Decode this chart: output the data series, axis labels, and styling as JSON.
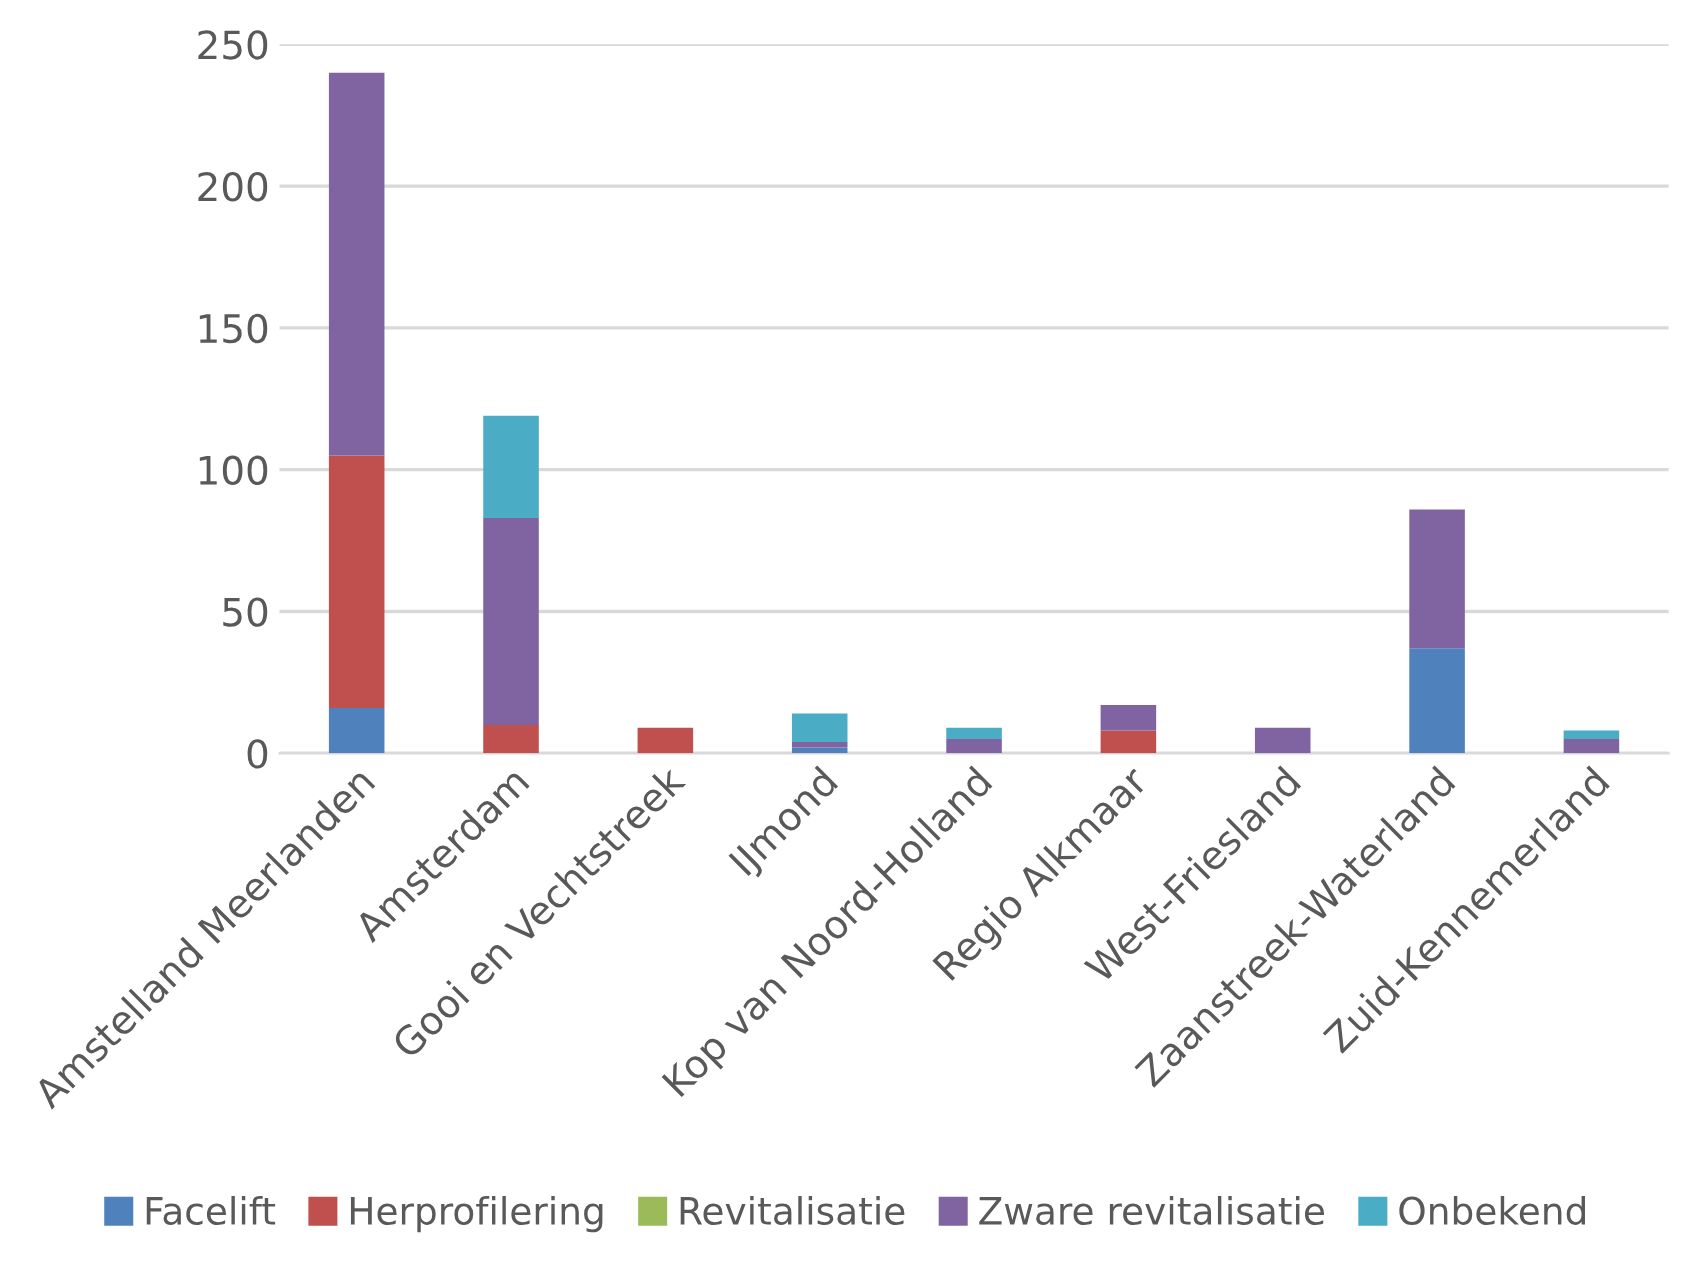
{
  "chart_data": {
    "type": "bar",
    "stacked": true,
    "categories": [
      "Amstelland Meerlanden",
      "Amsterdam",
      "Gooi en Vechtstreek",
      "IJmond",
      "Kop van Noord-Holland",
      "Regio Alkmaar",
      "West-Friesland",
      "Zaanstreek-Waterland",
      "Zuid-Kennemerland"
    ],
    "series": [
      {
        "name": "Facelift",
        "color": "#4f81bd",
        "values": [
          16,
          0,
          0,
          2,
          0,
          0,
          0,
          37,
          0
        ]
      },
      {
        "name": "Herprofilering",
        "color": "#c0504d",
        "values": [
          89,
          10,
          9,
          0,
          0,
          8,
          0,
          0,
          0
        ]
      },
      {
        "name": "Revitalisatie",
        "color": "#9bbb59",
        "values": [
          0,
          0,
          0,
          0,
          0,
          0,
          0,
          0,
          0
        ]
      },
      {
        "name": "Zware revitalisatie",
        "color": "#8064a2",
        "values": [
          135,
          73,
          0,
          2,
          5,
          9,
          9,
          49,
          5
        ]
      },
      {
        "name": "Onbekend",
        "color": "#4bacc6",
        "values": [
          0,
          36,
          0,
          10,
          4,
          0,
          0,
          0,
          3
        ]
      }
    ],
    "ylim": [
      0,
      250
    ],
    "yticks": [
      0,
      50,
      100,
      150,
      200,
      250
    ],
    "grid": "y",
    "legend": "bottom"
  }
}
